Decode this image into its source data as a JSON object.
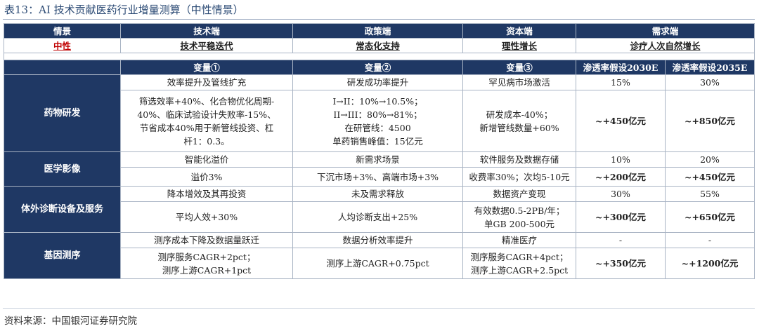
{
  "title": "表13：AI 技术贡献医药行业增量测算（中性情景）",
  "header": [
    "情景",
    "技术端",
    "政策端",
    "资本端",
    "需求端"
  ],
  "scenario": [
    "中性",
    "技术平稳迭代",
    "常态化支持",
    "理性增长",
    "诊疗人次自然增长"
  ],
  "subheader": [
    "",
    "变量①",
    "变量②",
    "变量③",
    "渗透率假设2030E",
    "渗透率假设2035E"
  ],
  "sections": [
    {
      "name": "药物研发",
      "rows": [
        [
          "效率提升及管线扩充",
          "研发成功率提升",
          "罕见病市场激活",
          "15%",
          "30%"
        ],
        [
          [
            "筛选效率+40%、化合物优化周期-",
            "40%、临床试验设计失败率-15%、",
            "节省成本40%用于新管线投资、杠",
            "杆1：0.3。"
          ],
          [
            "I→II：10%→10.5%；",
            "II→III：80%→81%；",
            "在研管线：4500",
            "单药销售峰值：15亿元"
          ],
          [
            "研发成本-40%；",
            "新增管线数量+60%"
          ],
          "~+450亿元",
          "~+850亿元"
        ]
      ]
    },
    {
      "name": "医学影像",
      "rows": [
        [
          "智能化溢价",
          "新需求场景",
          "软件服务及数据存储",
          "10%",
          "20%"
        ],
        [
          "溢价3%",
          "下沉市场+3%、高端市场+3%",
          "收费率30%；次均5-10元",
          "~+200亿元",
          "~+450亿元"
        ]
      ]
    },
    {
      "name": "体外诊断设备及服务",
      "rows": [
        [
          "降本增效及其再投资",
          "未及需求释放",
          "数据资产变现",
          "30%",
          "55%"
        ],
        [
          "平均人效+30%",
          "人均诊断支出+25%",
          [
            "有效数据0.5-2PB/年；",
            "单GB 200-500元"
          ],
          "~+300亿元",
          "~+650亿元"
        ]
      ]
    },
    {
      "name": "基因测序",
      "rows": [
        [
          "测序成本下降及数据量跃迁",
          "数据分析效率提升",
          "精准医疗",
          "-",
          "-"
        ],
        [
          [
            "测序服务CAGR+2pct；",
            "测序上游CAGR+1pct"
          ],
          "测序上游CAGR+0.75pct",
          [
            "测序服务CAGR+4pct；",
            "测序上游CAGR+2.5pct"
          ],
          "~+350亿元",
          "~+1200亿元"
        ]
      ]
    }
  ],
  "source": "资料来源：中国银河证券研究院"
}
